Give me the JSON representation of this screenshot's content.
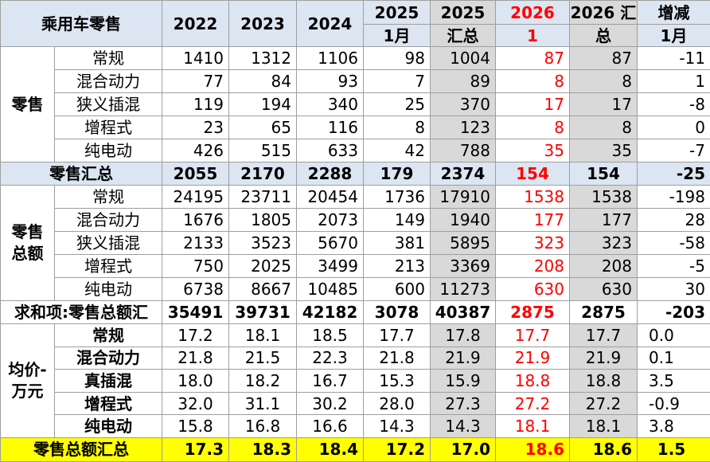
{
  "header": {
    "title": "乘用车零售",
    "years": [
      "2022",
      "2023",
      "2024"
    ],
    "split": [
      [
        "2025",
        "1月"
      ],
      [
        "2025",
        "汇总"
      ],
      [
        "2026",
        "1"
      ],
      [
        "2026 汇",
        "总"
      ],
      [
        "增减",
        "1月"
      ]
    ]
  },
  "sections": [
    {
      "label": [
        "零售"
      ],
      "rows": [
        {
          "label": "常规",
          "values": [
            "1410",
            "1312",
            "1106",
            "98",
            "1004",
            "87",
            "87",
            "-11"
          ]
        },
        {
          "label": "混合动力",
          "values": [
            "77",
            "84",
            "93",
            "7",
            "89",
            "8",
            "8",
            "1"
          ]
        },
        {
          "label": "狭义插混",
          "values": [
            "119",
            "194",
            "340",
            "25",
            "370",
            "17",
            "17",
            "-8"
          ]
        },
        {
          "label": "增程式",
          "values": [
            "23",
            "65",
            "116",
            "8",
            "123",
            "8",
            "8",
            "0"
          ]
        },
        {
          "label": "纯电动",
          "values": [
            "426",
            "515",
            "633",
            "42",
            "788",
            "35",
            "35",
            "-7"
          ]
        }
      ],
      "total": {
        "label": "零售汇总",
        "values": [
          "2055",
          "2170",
          "2288",
          "179",
          "2374",
          "154",
          "154",
          "-25"
        ]
      }
    },
    {
      "label": [
        "零售",
        "总额"
      ],
      "rows": [
        {
          "label": "常规",
          "values": [
            "24195",
            "23711",
            "20454",
            "1736",
            "17910",
            "1538",
            "1538",
            "-198"
          ]
        },
        {
          "label": "混合动力",
          "values": [
            "1676",
            "1805",
            "2073",
            "149",
            "1940",
            "177",
            "177",
            "28"
          ]
        },
        {
          "label": "狭义插混",
          "values": [
            "2133",
            "3523",
            "5670",
            "381",
            "5895",
            "323",
            "323",
            "-58"
          ]
        },
        {
          "label": "增程式",
          "values": [
            "750",
            "2025",
            "3499",
            "213",
            "3369",
            "208",
            "208",
            "-5"
          ]
        },
        {
          "label": "纯电动",
          "values": [
            "6738",
            "8667",
            "10485",
            "600",
            "11273",
            "630",
            "630",
            "30"
          ]
        }
      ],
      "total": {
        "label": "求和项:零售总额汇",
        "values": [
          "35491",
          "39731",
          "42182",
          "3078",
          "40387",
          "2875",
          "2875",
          "-203"
        ]
      }
    },
    {
      "label": [
        "均价-",
        "万元"
      ],
      "rows": [
        {
          "label": "常规",
          "values": [
            "17.2",
            "18.1",
            "18.5",
            "17.7",
            "17.8",
            "17.7",
            "17.7",
            "0.0"
          ]
        },
        {
          "label": "混合动力",
          "values": [
            "21.8",
            "21.5",
            "22.3",
            "21.8",
            "21.9",
            "21.9",
            "21.9",
            "0.1"
          ]
        },
        {
          "label": "真插混",
          "values": [
            "18.0",
            "18.2",
            "16.7",
            "15.3",
            "15.9",
            "18.8",
            "18.8",
            "3.5"
          ]
        },
        {
          "label": "增程式",
          "values": [
            "32.0",
            "31.1",
            "30.2",
            "28.0",
            "27.3",
            "27.2",
            "27.2",
            "-0.9"
          ]
        },
        {
          "label": "纯电动",
          "values": [
            "15.8",
            "16.8",
            "16.6",
            "14.3",
            "14.3",
            "18.1",
            "18.1",
            "3.8"
          ]
        }
      ],
      "total": {
        "label": "零售总额汇总",
        "values": [
          "17.3",
          "18.3",
          "18.4",
          "17.2",
          "17.0",
          "18.6",
          "18.6",
          "1.5"
        ]
      }
    }
  ]
}
